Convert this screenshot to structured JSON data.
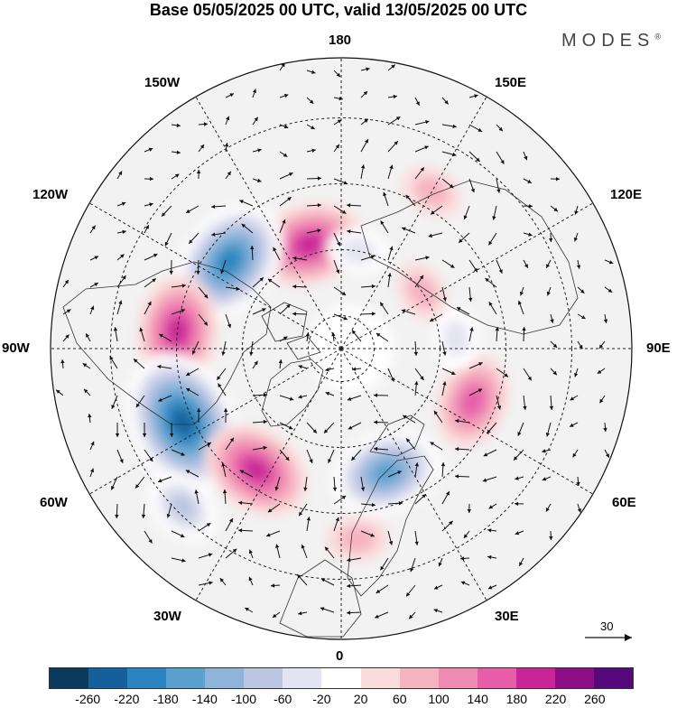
{
  "title": "Base 05/05/2025 00 UTC, valid 13/05/2025 00 UTC",
  "brand": "MODES",
  "brand_mark": "®",
  "longitude_labels": {
    "top": "180",
    "top_right": "150E",
    "right_upper": "120E",
    "right": "90E",
    "right_lower": "60E",
    "bottom_right": "30E",
    "bottom": "0",
    "bottom_left": "30W",
    "left_lower": "60W",
    "left": "90W",
    "left_upper": "120W",
    "top_left": "150W"
  },
  "reference_vector": {
    "value": "30"
  },
  "colorbar": {
    "colors": [
      "#0c3a5c",
      "#15609a",
      "#2b84bf",
      "#5aa1cf",
      "#8fb4da",
      "#bcc6e3",
      "#e4e3f1",
      "#ffffff",
      "#fbdcdd",
      "#f6b3c0",
      "#f08cb3",
      "#e65da9",
      "#c92597",
      "#8c0f86",
      "#55097a"
    ],
    "tick_labels": [
      "-260",
      "-220",
      "-180",
      "-140",
      "-100",
      "-60",
      "-20",
      "20",
      "60",
      "100",
      "140",
      "180",
      "220",
      "260"
    ]
  },
  "anomaly_centers": [
    {
      "lon": -163,
      "lat": 57,
      "value": 180
    },
    {
      "lon": -128,
      "lat": 47,
      "value": -220
    },
    {
      "lon": -96,
      "lat": 40,
      "value": 190
    },
    {
      "lon": -65,
      "lat": 37,
      "value": -240
    },
    {
      "lon": -35,
      "lat": 45,
      "value": 170
    },
    {
      "lon": 20,
      "lat": 50,
      "value": -160
    },
    {
      "lon": 68,
      "lat": 47,
      "value": 150
    },
    {
      "lon": 125,
      "lat": 60,
      "value": 50
    },
    {
      "lon": 170,
      "lat": 60,
      "value": -70
    },
    {
      "lon": 95,
      "lat": 55,
      "value": -60
    },
    {
      "lon": 5,
      "lat": 32,
      "value": 60
    },
    {
      "lon": -45,
      "lat": 22,
      "value": -80
    },
    {
      "lon": 150,
      "lat": 35,
      "value": 50
    }
  ]
}
